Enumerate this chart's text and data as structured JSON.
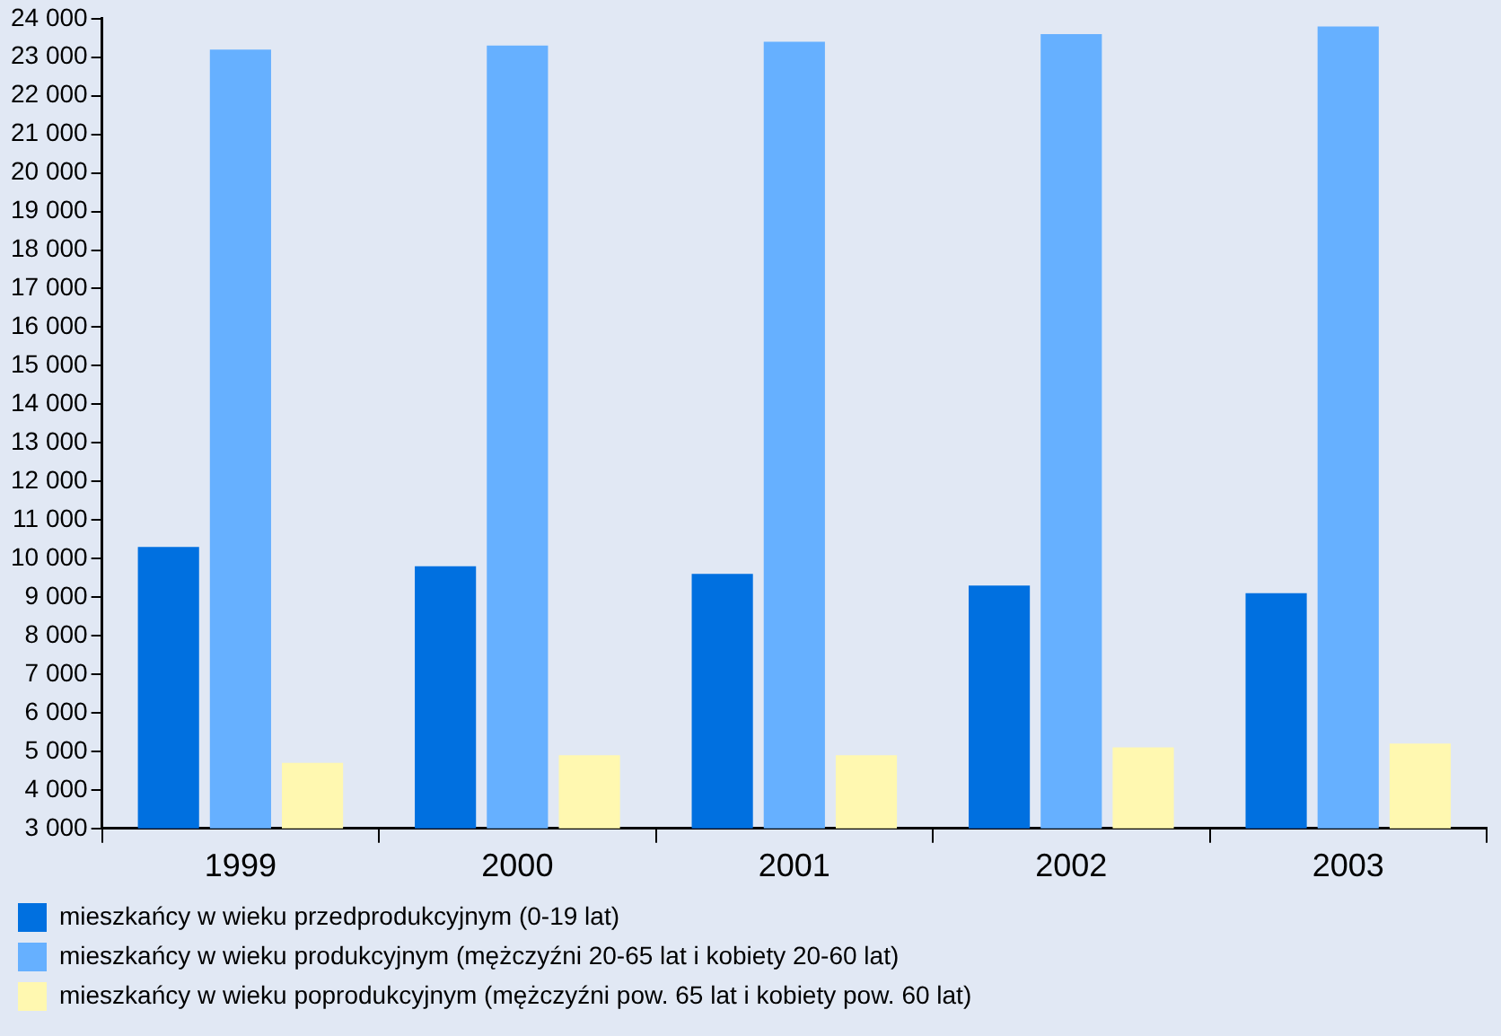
{
  "chart_data": {
    "type": "bar",
    "categories": [
      "1999",
      "2000",
      "2001",
      "2002",
      "2003"
    ],
    "series": [
      {
        "name": "mieszkańcy w wieku przedprodukcyjnym (0-19 lat)",
        "color": "#0070e0",
        "values": [
          10300,
          9800,
          9600,
          9300,
          9100
        ]
      },
      {
        "name": "mieszkańcy w wieku produkcyjnym (mężczyźni 20-65 lat i kobiety 20-60 lat)",
        "color": "#66b0ff",
        "values": [
          23200,
          23300,
          23400,
          23600,
          23800
        ]
      },
      {
        "name": "mieszkańcy w wieku poprodukcyjnym (mężczyźni pow. 65 lat i kobiety pow. 60 lat)",
        "color": "#fff8b0",
        "values": [
          4700,
          4900,
          4900,
          5100,
          5200
        ]
      }
    ],
    "ylim": [
      3000,
      24000
    ],
    "yticks": [
      {
        "value": 3000,
        "label": "3 000"
      },
      {
        "value": 4000,
        "label": "4 000"
      },
      {
        "value": 5000,
        "label": "5 000"
      },
      {
        "value": 6000,
        "label": "6 000"
      },
      {
        "value": 7000,
        "label": "7 000"
      },
      {
        "value": 8000,
        "label": "8 000"
      },
      {
        "value": 9000,
        "label": "9 000"
      },
      {
        "value": 10000,
        "label": "10 000"
      },
      {
        "value": 11000,
        "label": "11 000"
      },
      {
        "value": 12000,
        "label": "12 000"
      },
      {
        "value": 13000,
        "label": "13 000"
      },
      {
        "value": 14000,
        "label": "14 000"
      },
      {
        "value": 15000,
        "label": "15 000"
      },
      {
        "value": 16000,
        "label": "16 000"
      },
      {
        "value": 17000,
        "label": "17 000"
      },
      {
        "value": 18000,
        "label": "18 000"
      },
      {
        "value": 19000,
        "label": "19 000"
      },
      {
        "value": 20000,
        "label": "20 000"
      },
      {
        "value": 21000,
        "label": "21 000"
      },
      {
        "value": 22000,
        "label": "22 000"
      },
      {
        "value": 23000,
        "label": "23 000"
      },
      {
        "value": 24000,
        "label": "24 000"
      }
    ],
    "grid": false,
    "legend": "bottom left"
  }
}
